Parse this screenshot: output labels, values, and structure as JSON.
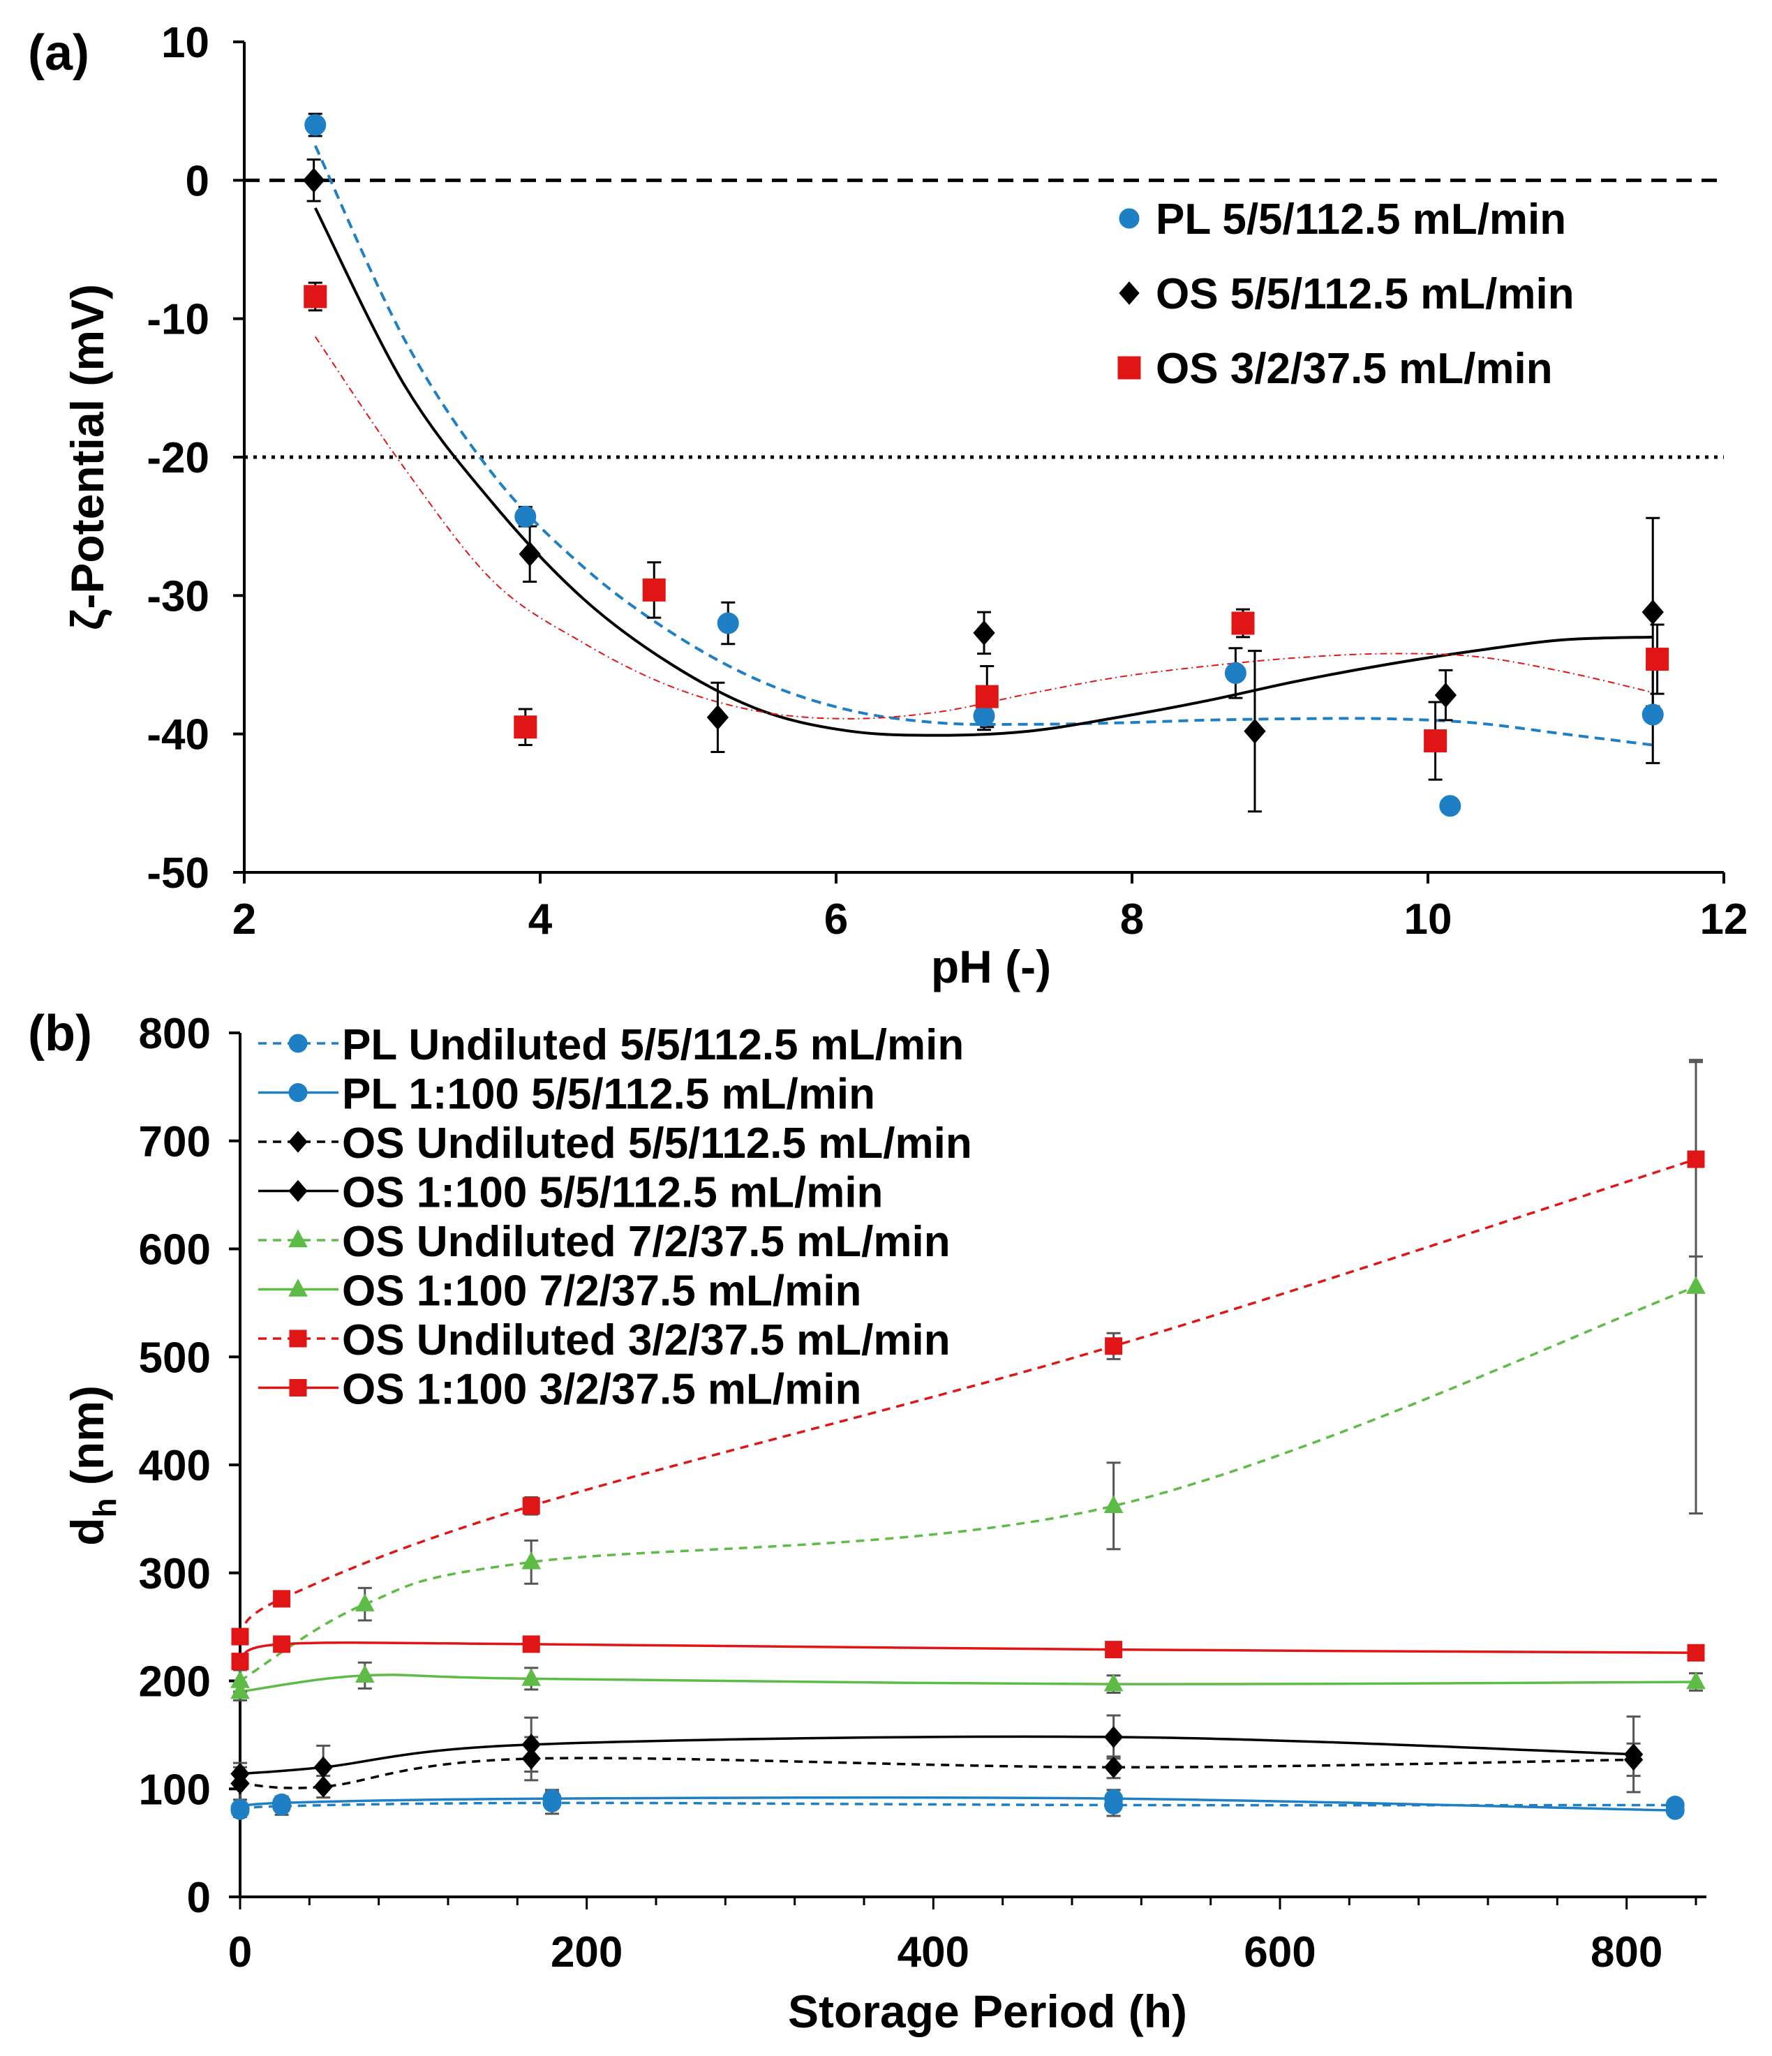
{
  "colors": {
    "blue": "#1f7fc4",
    "red": "#e01515",
    "black": "#000000",
    "green": "#5dbb46",
    "error": "#555555"
  },
  "chart_data": [
    {
      "type": "scatter",
      "panel": "(a)",
      "xlabel": "pH (-)",
      "ylabel": "ζ-Potential (mV)",
      "xlim": [
        2,
        12
      ],
      "ylim": [
        -50,
        10
      ],
      "xticks": [
        2,
        4,
        6,
        8,
        10,
        12
      ],
      "yticks": [
        10,
        0,
        -10,
        -20,
        -30,
        -40,
        -50
      ],
      "reference_lines": [
        {
          "y": 0,
          "style": "dashed"
        },
        {
          "y": -20,
          "style": "dotted"
        }
      ],
      "legend_position": "top-right",
      "series": [
        {
          "name": "PL 5/5/112.5 mL/min",
          "marker": "circle",
          "color": "#1f7fc4",
          "fit": "dashed",
          "x": [
            2.48,
            3.9,
            5.27,
            7.0,
            8.7,
            10.15,
            11.52
          ],
          "y": [
            4,
            -24.3,
            -32,
            -38.7,
            -35.6,
            -45.2,
            -38.6
          ],
          "err": [
            0.8,
            0.7,
            1.5,
            1.0,
            1.8,
            0.5,
            3.5
          ],
          "fit_y": [
            2.5,
            -11.5,
            -21.3,
            -27.9,
            -32.7,
            -36.2,
            -38.3,
            -39.2,
            -39.3,
            -39.2,
            -39.0,
            -38.9,
            -38.9,
            -39.2,
            -40.0,
            -40.8
          ]
        },
        {
          "name": "OS 5/5/112.5 mL/min",
          "marker": "diamond",
          "color": "#000000",
          "fit": "solid",
          "x": [
            2.47,
            3.93,
            5.2,
            7.0,
            8.83,
            10.12,
            11.52
          ],
          "y": [
            0,
            -27,
            -38.8,
            -32.7,
            -39.8,
            -37.2,
            -31.2
          ],
          "err": [
            1.5,
            2.0,
            2.5,
            1.5,
            5.8,
            1.8,
            6.8
          ],
          "fit_y": [
            -2.0,
            -14.8,
            -23.4,
            -30.2,
            -35.0,
            -38.3,
            -39.8,
            -40.1,
            -39.8,
            -38.8,
            -37.6,
            -36.2,
            -35.0,
            -34.0,
            -33.2,
            -33.0
          ]
        },
        {
          "name": "OS 3/2/37.5 mL/min",
          "marker": "square",
          "color": "#e01515",
          "fit": "dotted",
          "x": [
            2.48,
            3.9,
            4.77,
            7.02,
            8.75,
            10.05,
            11.55
          ],
          "y": [
            -8.4,
            -39.5,
            -29.6,
            -37.3,
            -32,
            -40.5,
            -34.6
          ],
          "err": [
            1.0,
            1.3,
            2.0,
            2.2,
            1.0,
            2.8,
            2.5
          ],
          "fit_y": [
            -11.3,
            -20.8,
            -29.0,
            -33.4,
            -36.6,
            -38.4,
            -38.9,
            -38.4,
            -37.1,
            -35.9,
            -35.1,
            -34.5,
            -34.2,
            -34.4,
            -35.5,
            -37.0
          ]
        }
      ]
    },
    {
      "type": "line",
      "panel": "(b)",
      "xlabel": "Storage Period (h)",
      "ylabel": "d",
      "ylabel_sub": "h",
      "ylabel_unit": " (nm)",
      "xlim": [
        0,
        840
      ],
      "ylim": [
        0,
        800
      ],
      "xticks": [
        0,
        200,
        400,
        600,
        800
      ],
      "yticks": [
        800,
        700,
        600,
        500,
        400,
        300,
        200,
        100,
        0
      ],
      "legend_position": "top-left",
      "series": [
        {
          "name": "PL Undiluted 5/5/112.5 mL/min",
          "marker": "circle",
          "color": "#1f7fc4",
          "dash": true,
          "x": [
            0,
            24,
            180,
            504,
            828
          ],
          "y": [
            80,
            84,
            87,
            85,
            85
          ],
          "err": [
            6,
            8,
            10,
            10,
            4
          ]
        },
        {
          "name": "PL 1:100 5/5/112.5 mL/min",
          "marker": "circle",
          "color": "#1f7fc4",
          "dash": false,
          "x": [
            0,
            24,
            180,
            504,
            828
          ],
          "y": [
            82,
            87,
            91,
            91,
            80
          ],
          "err": [
            5,
            6,
            8,
            8,
            4
          ]
        },
        {
          "name": "OS Undiluted 5/5/112.5 mL/min",
          "marker": "diamond",
          "color": "#000000",
          "dash": true,
          "x": [
            0,
            48,
            168,
            504,
            804
          ],
          "y": [
            105,
            102,
            128,
            120,
            127
          ],
          "err": [
            15,
            10,
            20,
            10,
            15
          ]
        },
        {
          "name": "OS 1:100 5/5/112.5 mL/min",
          "marker": "diamond",
          "color": "#000000",
          "dash": false,
          "x": [
            0,
            48,
            168,
            504,
            804
          ],
          "y": [
            114,
            120,
            141,
            148,
            132
          ],
          "err": [
            10,
            20,
            25,
            20,
            35
          ]
        },
        {
          "name": "OS Undiluted 7/2/37.5 mL/min",
          "marker": "triangle",
          "color": "#5dbb46",
          "dash": true,
          "x": [
            0,
            72,
            168,
            504,
            840
          ],
          "y": [
            200,
            271,
            310,
            362,
            565
          ],
          "err": [
            10,
            15,
            20,
            40,
            210
          ]
        },
        {
          "name": "OS 1:100 7/2/37.5 mL/min",
          "marker": "triangle",
          "color": "#5dbb46",
          "dash": false,
          "x": [
            0,
            72,
            168,
            504,
            840
          ],
          "y": [
            190,
            205,
            202,
            197,
            199
          ],
          "err": [
            8,
            12,
            10,
            8,
            8
          ]
        },
        {
          "name": "OS Undiluted 3/2/37.5 mL/min",
          "marker": "square",
          "color": "#e01515",
          "dash": true,
          "x": [
            0,
            24,
            168,
            504,
            840
          ],
          "y": [
            241,
            276,
            362,
            510,
            683
          ],
          "err": [
            6,
            6,
            8,
            12,
            90
          ]
        },
        {
          "name": "OS 1:100 3/2/37.5 mL/min",
          "marker": "square",
          "color": "#e01515",
          "dash": false,
          "x": [
            0,
            24,
            168,
            504,
            840
          ],
          "y": [
            218,
            234,
            234,
            229,
            226
          ],
          "err": [
            5,
            5,
            5,
            5,
            5
          ]
        }
      ]
    }
  ]
}
